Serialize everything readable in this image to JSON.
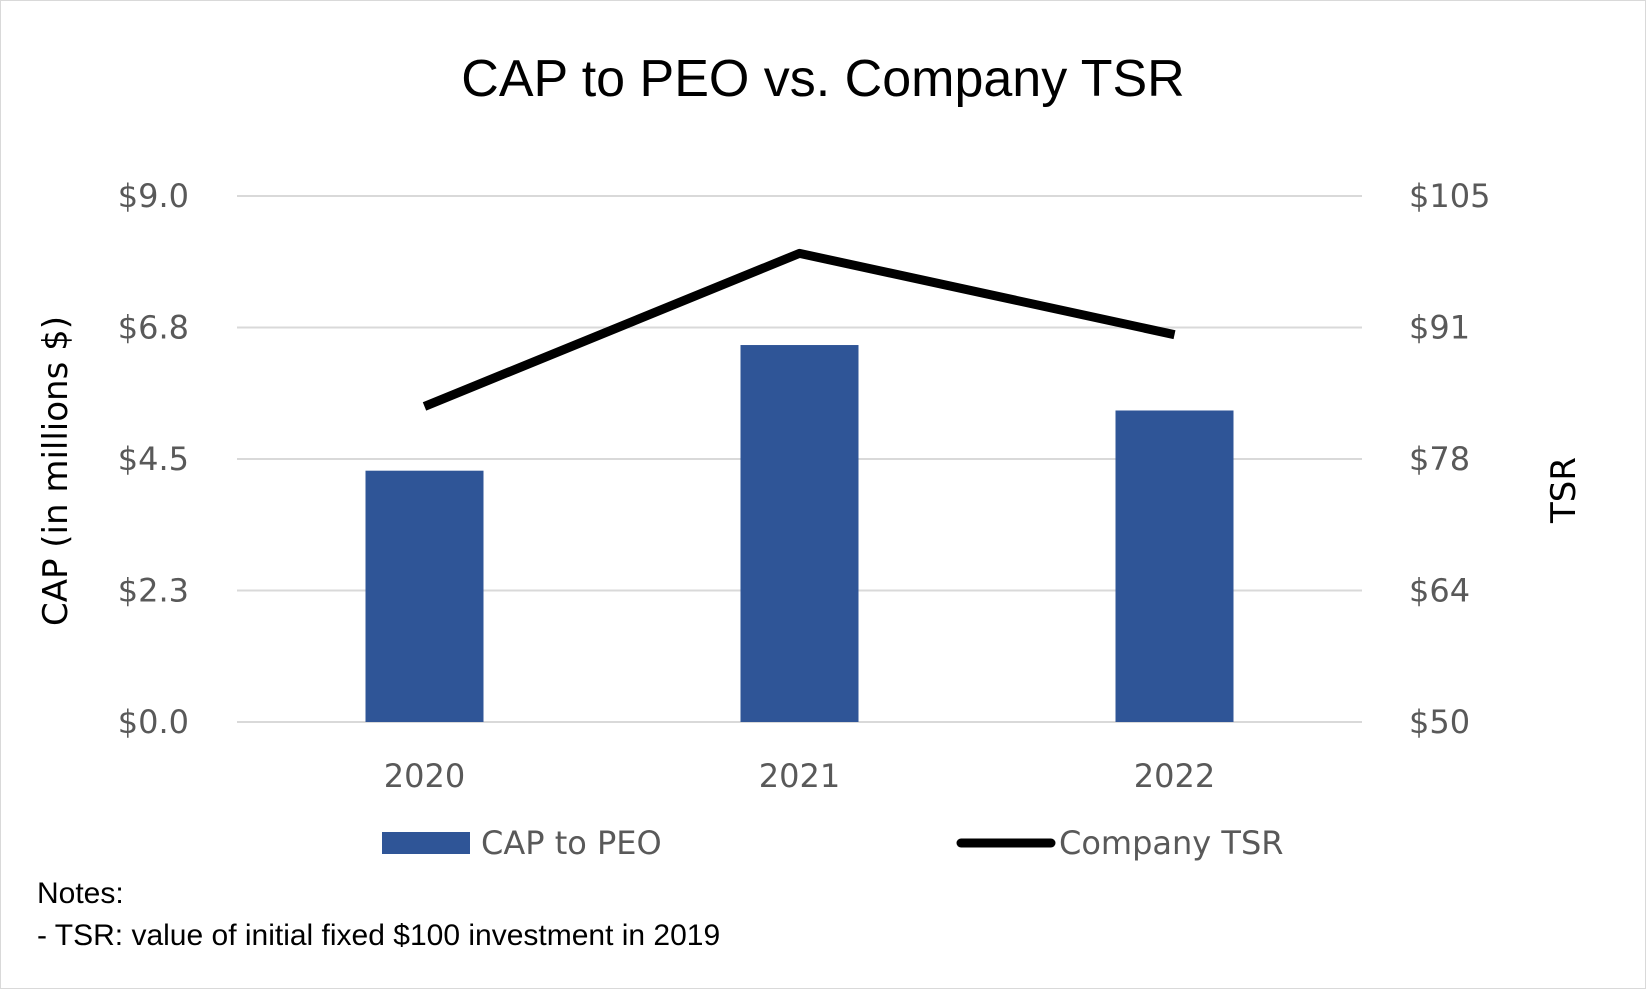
{
  "chart_data": {
    "type": "bar+line",
    "title": "CAP to PEO vs. Company TSR",
    "categories": [
      "2020",
      "2021",
      "2022"
    ],
    "series": [
      {
        "name": "CAP to PEO",
        "type": "bar",
        "axis": "left",
        "color": "#2F5597",
        "values": [
          4.3,
          6.45,
          5.33
        ]
      },
      {
        "name": "Company TSR",
        "type": "line",
        "axis": "right",
        "color": "#000000",
        "values": [
          83.0,
          99.0,
          90.5
        ]
      }
    ],
    "y_left": {
      "label": "CAP (in millions $)",
      "ylim": [
        0,
        9
      ],
      "ticks": [
        0,
        2.25,
        4.5,
        6.75,
        9
      ],
      "tick_labels": [
        "$0.0",
        "$2.3",
        "$4.5",
        "$6.8",
        "$9.0"
      ]
    },
    "y_right": {
      "label": "TSR",
      "ylim": [
        50,
        105
      ],
      "ticks": [
        50,
        63.75,
        77.5,
        91.25,
        105
      ],
      "tick_labels": [
        "$50",
        "$64",
        "$78",
        "$91",
        "$105"
      ]
    },
    "legend": {
      "placement": "bottom",
      "items": [
        "CAP to PEO",
        "Company TSR"
      ]
    },
    "grid": true,
    "gridline_color": "#d9d9d9"
  },
  "notes": {
    "heading": "Notes:",
    "lines": [
      "- TSR: value of initial fixed $100 investment in 2019"
    ]
  }
}
